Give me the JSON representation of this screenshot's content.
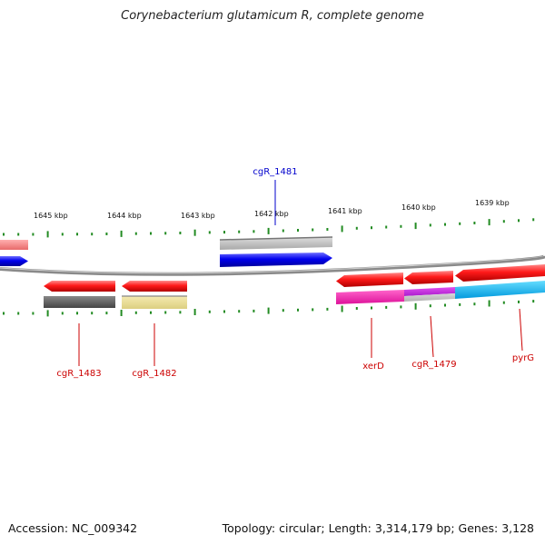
{
  "header": {
    "title": "Corynebacterium glutamicum R, complete genome"
  },
  "footer": {
    "accession": "Accession: NC_009342",
    "stats": "Topology: circular; Length: 3,314,179 bp; Genes: 3,128"
  },
  "scale": {
    "labels": [
      "1645 kbp",
      "1644 kbp",
      "1643 kbp",
      "1642 kbp",
      "1641 kbp",
      "1640 kbp",
      "1639 kbp"
    ]
  },
  "genes": [
    {
      "label": "cgR_1481",
      "color": "#0000cc"
    },
    {
      "label": "cgR_1483",
      "color": "#cc0000"
    },
    {
      "label": "cgR_1482",
      "color": "#cc0000"
    },
    {
      "label": "xerD",
      "color": "#cc0000"
    },
    {
      "label": "cgR_1479",
      "color": "#cc0000"
    },
    {
      "label": "pyrG",
      "color": "#cc0000"
    }
  ],
  "colors": {
    "backbone": "#8a8a8a",
    "tick": "#228b22",
    "forward_gene": "#0000ee",
    "reverse_gene": "#ee0000"
  }
}
